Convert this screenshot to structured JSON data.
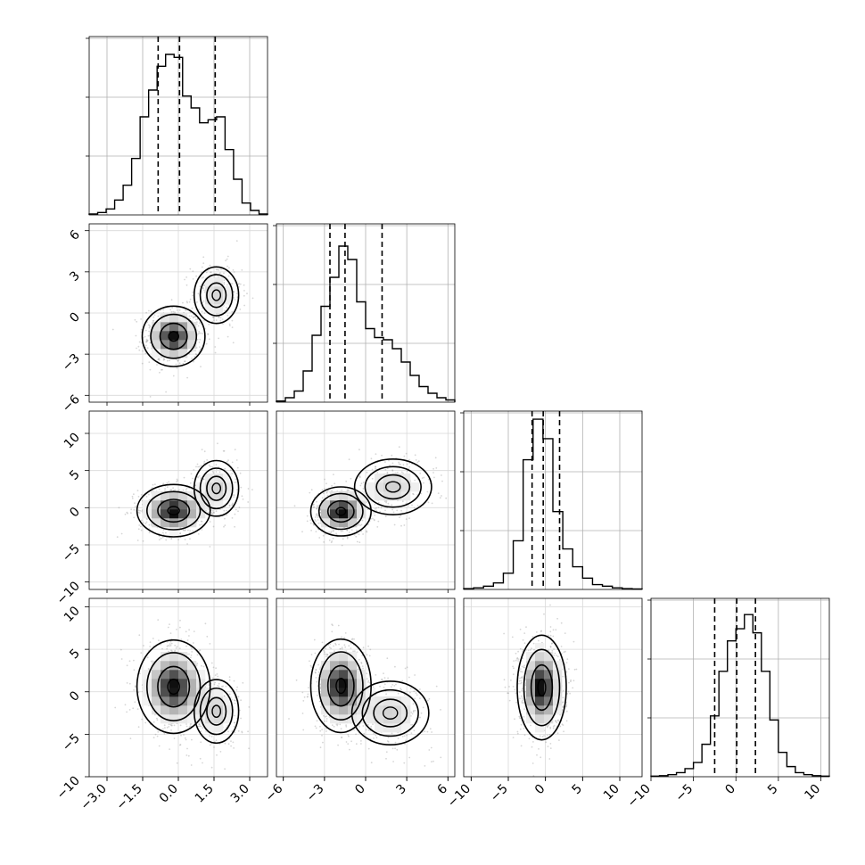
{
  "chart_data": {
    "type": "corner",
    "variables": [
      {
        "range": [
          -3.75,
          3.75
        ],
        "ticks": [
          "-3.0",
          "-1.5",
          "0.0",
          "1.5",
          "3.0"
        ],
        "tick_values": [
          -3,
          -1.5,
          0,
          1.5,
          3
        ]
      },
      {
        "range": [
          -6.5,
          6.5
        ],
        "ticks": [
          "-6",
          "-3",
          "0",
          "3",
          "6"
        ],
        "tick_values": [
          -6,
          -3,
          0,
          3,
          6
        ]
      },
      {
        "range": [
          -11,
          13
        ],
        "ticks": [
          "-10",
          "-5",
          "0",
          "5",
          "10"
        ],
        "tick_values": [
          -10,
          -5,
          0,
          5,
          10
        ]
      },
      {
        "range": [
          -10,
          11
        ],
        "ticks": [
          "-10",
          "-5",
          "0",
          "5",
          "10"
        ],
        "tick_values": [
          -10,
          -5,
          0,
          5,
          10
        ]
      }
    ],
    "histograms": [
      {
        "bins": [
          -3.75,
          3.75
        ],
        "counts": [
          0.3,
          0.8,
          2,
          5,
          10,
          19,
          33,
          42,
          50,
          54,
          53,
          40,
          36,
          31,
          32,
          33,
          22,
          12,
          4,
          1.5,
          0.3
        ],
        "ymax": 60,
        "quantiles": [
          -0.85,
          0.05,
          1.55
        ]
      },
      {
        "bins": [
          -6.5,
          6.5
        ],
        "counts": [
          0.5,
          2,
          5,
          14,
          30,
          43,
          56,
          70,
          64,
          45,
          33,
          29,
          28,
          24,
          18,
          12,
          7,
          4,
          2,
          1
        ],
        "ymax": 80,
        "quantiles": [
          -2.6,
          -1.5,
          1.2
        ]
      },
      {
        "bins": [
          -11,
          13
        ],
        "counts": [
          0.5,
          1,
          2,
          4,
          10,
          30,
          80,
          105,
          93,
          48,
          25,
          14,
          7,
          3,
          2,
          1,
          0.5,
          0.3
        ],
        "ymax": 110,
        "quantiles": [
          -1.8,
          -0.3,
          1.9
        ]
      },
      {
        "bins": [
          -10,
          11
        ],
        "counts": [
          0.3,
          0.5,
          1,
          2,
          4,
          7,
          16,
          30,
          52,
          67,
          73,
          80,
          71,
          52,
          28,
          12,
          5,
          2,
          1,
          0.5,
          0.3
        ],
        "ymax": 88,
        "quantiles": [
          -2.5,
          0.1,
          2.3
        ]
      }
    ],
    "joint_modes": {
      "1-0": [
        {
          "x": -0.2,
          "y": -1.7,
          "sx": 0.6,
          "sy": 1.0,
          "w": 0.7
        },
        {
          "x": 1.6,
          "y": 1.3,
          "sx": 0.5,
          "sy": 1.1,
          "w": 0.3
        }
      ],
      "2-0": [
        {
          "x": -0.2,
          "y": -0.4,
          "sx": 0.7,
          "sy": 1.6,
          "w": 0.7
        },
        {
          "x": 1.6,
          "y": 2.6,
          "sx": 0.5,
          "sy": 2.0,
          "w": 0.3
        }
      ],
      "2-1": [
        {
          "x": -1.8,
          "y": -0.5,
          "sx": 1.0,
          "sy": 1.5,
          "w": 0.7
        },
        {
          "x": 2.0,
          "y": 2.8,
          "sx": 1.5,
          "sy": 2.0,
          "w": 0.3
        }
      ],
      "3-0": [
        {
          "x": -0.2,
          "y": 0.6,
          "sx": 0.7,
          "sy": 2.5,
          "w": 0.7
        },
        {
          "x": 1.6,
          "y": -2.3,
          "sx": 0.5,
          "sy": 2.0,
          "w": 0.3
        }
      ],
      "3-1": [
        {
          "x": -1.8,
          "y": 0.7,
          "sx": 1.0,
          "sy": 2.5,
          "w": 0.7
        },
        {
          "x": 1.8,
          "y": -2.5,
          "sx": 1.5,
          "sy": 2.0,
          "w": 0.3
        }
      ],
      "3-2": [
        {
          "x": -0.5,
          "y": 0.5,
          "sx": 1.5,
          "sy": 2.8,
          "w": 1.0
        }
      ]
    },
    "grid": true,
    "quantile_style": "dashed"
  }
}
